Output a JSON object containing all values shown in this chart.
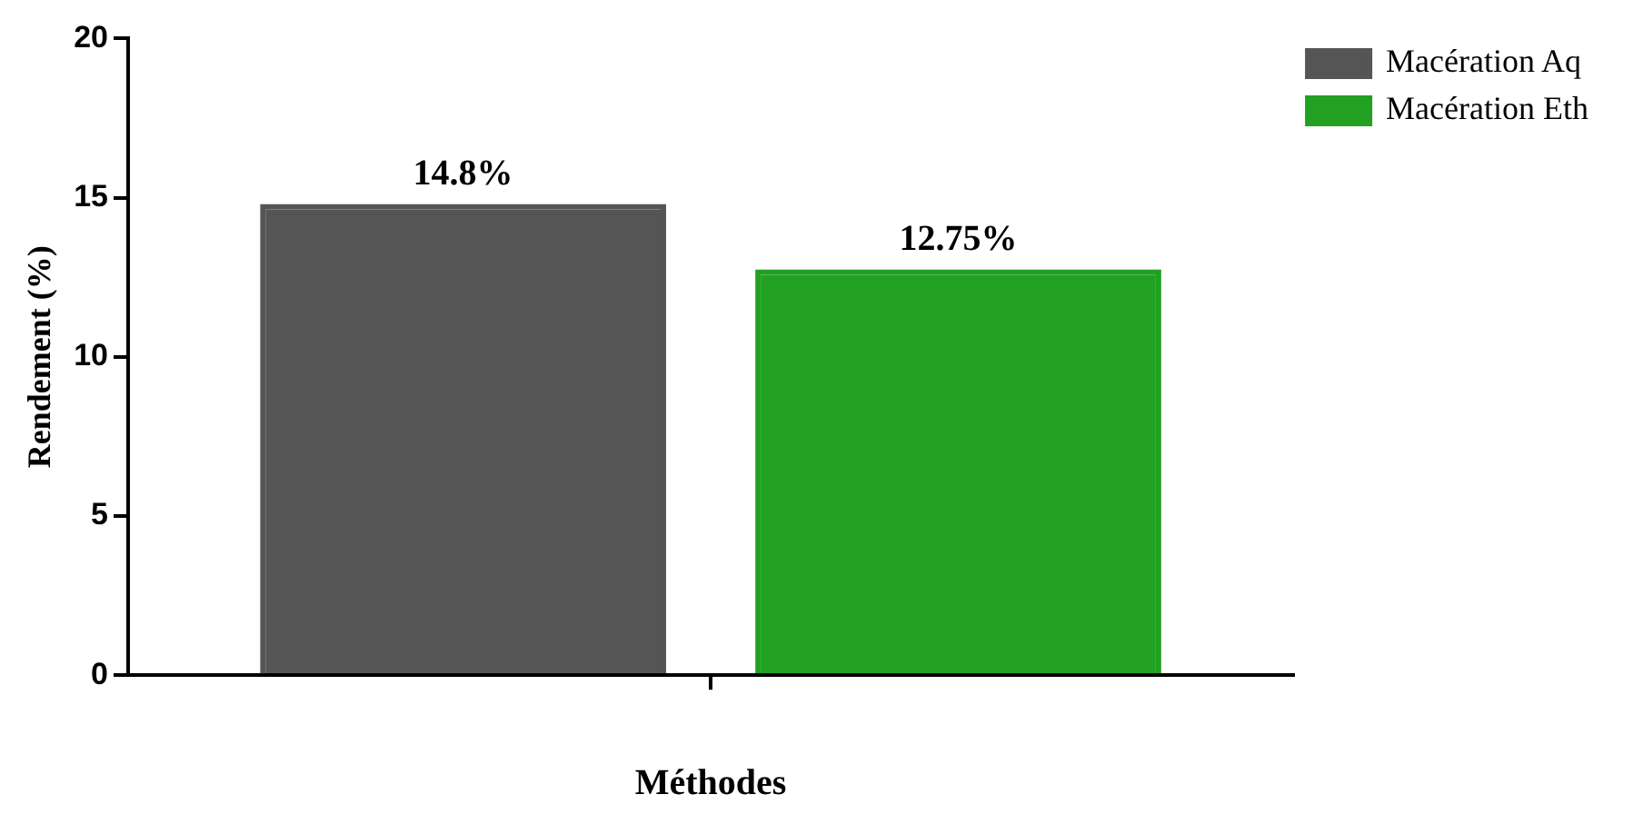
{
  "chart_data": {
    "type": "bar",
    "xlabel": "Méthodes",
    "ylabel": "Rendement (%)",
    "categories": [
      null
    ],
    "series": [
      {
        "name": "Macération Aq",
        "color": "#555555",
        "values": [
          14.8
        ],
        "value_labels": [
          "14.8%"
        ]
      },
      {
        "name": "Macération Eth",
        "color": "#22a022",
        "values": [
          12.75
        ],
        "value_labels": [
          "12.75%"
        ]
      }
    ],
    "ylim": [
      0,
      20
    ],
    "yticks": [
      0,
      5,
      10,
      15,
      20
    ],
    "grid": false,
    "legend": "top right"
  }
}
